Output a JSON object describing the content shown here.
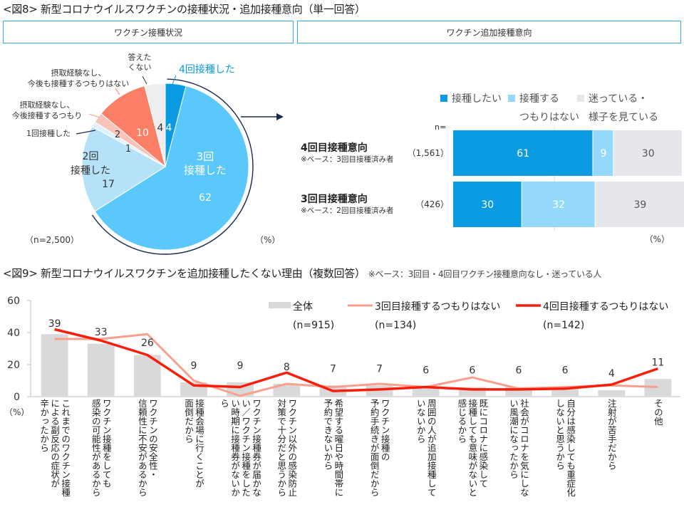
{
  "fig8": {
    "title": "<図8> 新型コロナウイルスワクチンの接種状況・追加接種意向（単一回答）",
    "left_header": "ワクチン接種状況",
    "right_header": "ワクチン追加接種意向"
  },
  "fig9": {
    "title": "<図9> 新型コロナウイルスワクチンを追加接種したくない理由（複数回答）",
    "base_note": "※ベース：3回目・4回目ワクチン接種意向なし・迷っている人"
  },
  "colors": {
    "pie_4": "#0a9be3",
    "pie_3": "#5ac8fa",
    "pie_2": "#b5e2f8",
    "pie_1": "#dff2fc",
    "pie_plan": "#f8c3b8",
    "pie_noplan": "#fb7f67",
    "pie_na": "#eeeeee",
    "section_border": "#3aa6dc",
    "stack_want": "#0a9be3",
    "stack_no": "#94d9fb",
    "stack_unsure": "#e5e7ea",
    "bar_all": "#d9d9d9",
    "line_3rd": "#f8a090",
    "line_4th": "#fa1e0a",
    "arrow": "#1a2a4a"
  },
  "chart_data": [
    {
      "type": "pie",
      "title": "ワクチン接種状況",
      "n_label": "（n=2,500）",
      "unit_label": "（%）",
      "slices": [
        {
          "label": "4回接種した",
          "value": 4,
          "color_key": "pie_4",
          "value_label": "4"
        },
        {
          "label": "3回接種した",
          "value": 62,
          "color_key": "pie_3",
          "value_label": "62"
        },
        {
          "label": "2回接種した",
          "value": 17,
          "color_key": "pie_2",
          "value_label": "17"
        },
        {
          "label": "1回接種した",
          "value": 1,
          "color_key": "pie_1",
          "value_label": "1"
        },
        {
          "label": "摂取経験なし、今後接種するつもり",
          "value": 2,
          "color_key": "pie_plan",
          "value_label": "2"
        },
        {
          "label": "摂取経験なし、今後も接種するつもりはない",
          "value": 10,
          "color_key": "pie_noplan",
          "value_label": "10"
        },
        {
          "label": "答えたくない",
          "value": 4,
          "color_key": "pie_na",
          "value_label": "4"
        }
      ],
      "callouts": {
        "four": "4回接種した",
        "three_a": "3回",
        "three_b": "接種した",
        "two_a": "2回",
        "two_b": "接種した",
        "one": "1回接種した",
        "plan_a": "摂取経験なし、",
        "plan_b": "今後接種するつもり",
        "noplan_a": "摂取経験なし、",
        "noplan_b": "今後も接種するつもりはない",
        "na_a": "答えた",
        "na_b": "くない"
      }
    },
    {
      "type": "bar",
      "stacked": true,
      "orientation": "horizontal",
      "title": "ワクチン追加接種意向",
      "n_header": "n=",
      "unit_label": "（%）",
      "legend": [
        {
          "label_lines": [
            "接種したい"
          ],
          "color_key": "stack_want"
        },
        {
          "label_lines": [
            "接種する",
            "つもりはない"
          ],
          "color_key": "stack_no"
        },
        {
          "label_lines": [
            "迷っている・",
            "様子を見ている"
          ],
          "color_key": "stack_unsure"
        }
      ],
      "categories": [
        {
          "label": "4回目接種意向",
          "note": "※ベース：3回目接種済み者",
          "n": "（1,561）"
        },
        {
          "label": "3回目接種意向",
          "note": "※ベース：2回目接種済み者",
          "n": "（426）"
        }
      ],
      "series": [
        {
          "name": "接種したい",
          "values": [
            61,
            30
          ]
        },
        {
          "name": "接種するつもりはない",
          "values": [
            9,
            32
          ]
        },
        {
          "name": "迷っている・様子を見ている",
          "values": [
            30,
            39
          ]
        }
      ],
      "xlim": [
        0,
        100
      ]
    },
    {
      "type": "bar",
      "title": "新型コロナウイルスワクチンを追加接種したくない理由（複数回答）",
      "ylabel": "（%）",
      "ylim": [
        0,
        60
      ],
      "yticks": [
        0,
        20,
        40,
        60
      ],
      "categories": [
        "これまでのワクチン接種\nによる副反応の症状が\n辛かったから",
        "ワクチン接種をしても\n感染の可能性があるから",
        "ワクチンの安全性・\n信頼性に不安があるから",
        "接種会場に行くことが\n面倒だから",
        "ワクチン接種券が届かな\nい／ワクチン接種をした\nい時期に接種券がないか\nら",
        "ワクチン以外の感染防止\n対策で十分だと思うから",
        "希望する曜日や時間帯に\n予約できないから",
        "ワクチン接種の\n予約手続きが面倒だから",
        "周囲の人が追加接種して\nいないから",
        "既にコロナに感染して\n接種しても意味がないと\n感じるから",
        "社会がコロナを気にしな\nい風潮になったから",
        "自分は感染しても重症化\nしないと思うから",
        "注射が苦手だから",
        "その他"
      ],
      "series": [
        {
          "name": "全体",
          "n_label": "(n=915)",
          "kind": "bar",
          "color_key": "bar_all",
          "values": [
            39,
            33,
            26,
            9,
            9,
            8,
            7,
            7,
            6,
            6,
            6,
            6,
            4,
            11
          ]
        },
        {
          "name": "3回目接種するつもりはない",
          "n_label": "(n=134)",
          "kind": "line",
          "color_key": "line_3rd",
          "values": [
            36,
            36,
            39,
            10,
            0.5,
            8,
            6,
            8,
            6,
            12,
            5,
            6,
            7,
            6
          ]
        },
        {
          "name": "4回目接種するつもりはない",
          "n_label": "(n=142)",
          "kind": "line",
          "color_key": "line_4th",
          "values": [
            42,
            35,
            26,
            7,
            6,
            15,
            3.5,
            4.5,
            6,
            4.5,
            4.5,
            5,
            7.5,
            17.5
          ]
        }
      ],
      "data_labels": [
        "39",
        "33",
        "26",
        "9",
        "9",
        "8",
        "7",
        "7",
        "6",
        "6",
        "6",
        "6",
        "4",
        "11"
      ],
      "grid": false,
      "legend_position": "top-right"
    }
  ]
}
